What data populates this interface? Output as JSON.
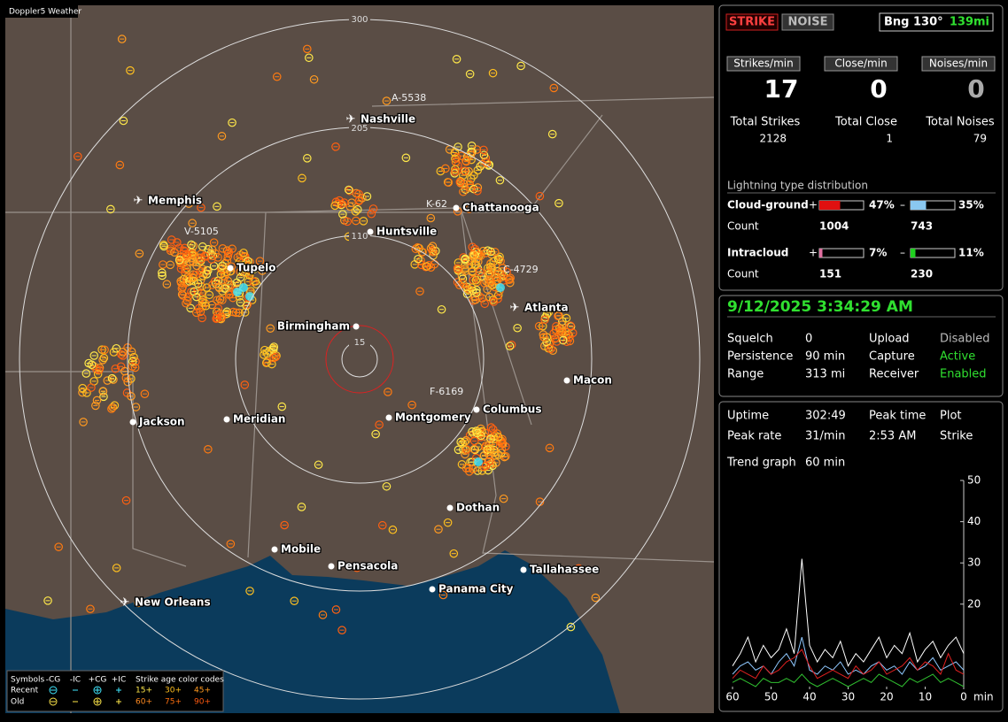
{
  "window_title": "Doppler5 Weather",
  "map": {
    "ring_labels": [
      "300",
      "205",
      "110",
      "15"
    ],
    "cities": [
      {
        "name": "Nashville",
        "icon": "airport"
      },
      {
        "name": "Memphis",
        "icon": "airport"
      },
      {
        "name": "Chattanooga",
        "icon": "dot"
      },
      {
        "name": "Huntsville",
        "icon": "dot"
      },
      {
        "name": "Tupelo",
        "icon": "dot"
      },
      {
        "name": "Atlanta",
        "icon": "airport"
      },
      {
        "name": "Birmingham",
        "icon": "dot"
      },
      {
        "name": "Macon",
        "icon": "dot"
      },
      {
        "name": "Meridian",
        "icon": "dot"
      },
      {
        "name": "Jackson",
        "icon": "dot"
      },
      {
        "name": "Montgomery",
        "icon": "dot"
      },
      {
        "name": "Columbus",
        "icon": "dot"
      },
      {
        "name": "Dothan",
        "icon": "dot"
      },
      {
        "name": "Mobile",
        "icon": "dot"
      },
      {
        "name": "Pensacola",
        "icon": "dot"
      },
      {
        "name": "Tallahassee",
        "icon": "dot"
      },
      {
        "name": "Panama City",
        "icon": "dot"
      },
      {
        "name": "New Orleans",
        "icon": "airport"
      }
    ],
    "storm_labels": [
      "A-5538",
      "K-62",
      "V-5105",
      "C-4729",
      "F-6169"
    ]
  },
  "legend": {
    "symbols_title": "Symbols",
    "symbol_types": [
      "-CG",
      "-IC",
      "+CG",
      "+IC"
    ],
    "age_title": "Strike age color codes",
    "rows": [
      {
        "label": "Recent",
        "ages": [
          "15+",
          "30+",
          "45+"
        ]
      },
      {
        "label": "Old",
        "ages": [
          "60+",
          "75+",
          "90+"
        ]
      }
    ]
  },
  "panel": {
    "modes": [
      "STRIKE",
      "NOISE"
    ],
    "bearing": "Bng 130°",
    "distance": "139mi",
    "rates": [
      {
        "label": "Strikes/min",
        "value": "17"
      },
      {
        "label": "Close/min",
        "value": "0"
      },
      {
        "label": "Noises/min",
        "value": "0"
      }
    ],
    "totals": [
      {
        "label": "Total Strikes",
        "value": "2128"
      },
      {
        "label": "Total Close",
        "value": "1"
      },
      {
        "label": "Total Noises",
        "value": "79"
      }
    ],
    "distribution": {
      "title": "Lightning type distribution",
      "rows": [
        {
          "label": "Cloud-ground",
          "positive": {
            "sign": "+",
            "value": 47,
            "label": "47%"
          },
          "negative": {
            "sign": "–",
            "value": 35,
            "label": "35%"
          },
          "count_label": "Count",
          "counts": [
            "1004",
            "743"
          ]
        },
        {
          "label": "Intracloud",
          "positive": {
            "sign": "+",
            "value": 7,
            "label": "7%"
          },
          "negative": {
            "sign": "–",
            "value": 11,
            "label": "11%"
          },
          "count_label": "Count",
          "counts": [
            "151",
            "230"
          ]
        }
      ]
    },
    "status": {
      "datetime": "9/12/2025 3:34:29 AM",
      "rows": [
        [
          "Squelch",
          "0",
          "Upload",
          "Disabled"
        ],
        [
          "Persistence",
          "90 min",
          "Capture",
          "Active"
        ],
        [
          "Range",
          "313 mi",
          "Receiver",
          "Enabled"
        ]
      ]
    },
    "stats": {
      "rows": [
        [
          "Uptime",
          "302:49",
          "Peak time",
          "Plot"
        ],
        [
          "Peak rate",
          "31/min",
          "2:53 AM",
          "Strike"
        ],
        [
          "Trend graph",
          "60 min"
        ]
      ]
    }
  },
  "trend_graph": {
    "type": "line",
    "x": [
      60,
      58,
      56,
      54,
      52,
      50,
      48,
      46,
      44,
      42,
      40,
      38,
      36,
      34,
      32,
      30,
      28,
      26,
      24,
      22,
      20,
      18,
      16,
      14,
      12,
      10,
      8,
      6,
      4,
      2,
      0
    ],
    "xlim": [
      60,
      0
    ],
    "xticks": [
      60,
      50,
      40,
      30,
      20,
      10,
      0
    ],
    "x_unit": "min",
    "ylim": [
      0,
      50
    ],
    "yticks": [
      20,
      30,
      40,
      50
    ],
    "series": [
      {
        "color": "#ffffff",
        "values": [
          5,
          8,
          12,
          6,
          10,
          7,
          9,
          14,
          8,
          31,
          10,
          6,
          9,
          7,
          11,
          5,
          8,
          6,
          9,
          12,
          7,
          10,
          8,
          13,
          6,
          9,
          11,
          7,
          10,
          12,
          8
        ]
      },
      {
        "color": "#8fc8ff",
        "values": [
          3,
          5,
          6,
          4,
          5,
          3,
          6,
          8,
          5,
          12,
          4,
          3,
          5,
          4,
          6,
          3,
          4,
          3,
          5,
          6,
          4,
          5,
          3,
          6,
          4,
          5,
          7,
          4,
          5,
          6,
          4
        ]
      },
      {
        "color": "#e02020",
        "values": [
          2,
          4,
          3,
          2,
          5,
          3,
          4,
          6,
          7,
          9,
          5,
          2,
          3,
          4,
          3,
          2,
          5,
          3,
          4,
          6,
          3,
          4,
          5,
          7,
          4,
          6,
          5,
          3,
          8,
          4,
          3
        ]
      },
      {
        "color": "#30c030",
        "values": [
          1,
          2,
          1,
          0,
          2,
          1,
          1,
          2,
          1,
          3,
          1,
          0,
          1,
          2,
          1,
          0,
          1,
          2,
          1,
          3,
          2,
          1,
          0,
          2,
          1,
          2,
          3,
          1,
          2,
          1,
          0
        ]
      }
    ]
  }
}
